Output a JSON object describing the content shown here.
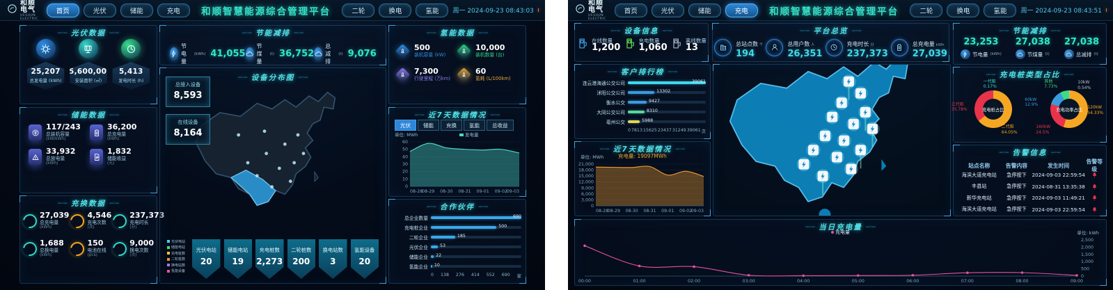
{
  "brand": {
    "logo": "和顺电气",
    "logo_sub": "HESHUN ELECTRIC"
  },
  "left": {
    "header": {
      "nav": [
        "首页",
        "光伏",
        "储能",
        "充电"
      ],
      "active": "首页",
      "title": "和顺智慧能源综合管理平台",
      "nav2": [
        "二轮",
        "换电",
        "氢能"
      ],
      "datetime": "周一 2024-09-23 08:43:03"
    },
    "pv": {
      "title": "光伏数据",
      "items": [
        {
          "value": "25,207",
          "label": "总发电量",
          "unit": "kWh",
          "icon": "sun-icon",
          "color": "#2f8fe8"
        },
        {
          "value": "5,600,000",
          "label": "安装面积",
          "unit": "㎡",
          "icon": "panel-icon",
          "color": "#35d8c8"
        },
        {
          "value": "5,413",
          "label": "发电时长",
          "unit": "h",
          "icon": "clock-icon",
          "color": "#35e089"
        }
      ]
    },
    "storage": {
      "title": "储能数据",
      "items": [
        {
          "value": "117/243",
          "label": "总装机容量",
          "unit": "kW/kWh",
          "icon": "coin-icon"
        },
        {
          "value": "36,200",
          "label": "总充电量",
          "unit": "kWh",
          "icon": "battery-icon"
        },
        {
          "value": "33,932",
          "label": "总放电量",
          "unit": "kWh",
          "icon": "triangle-icon"
        },
        {
          "value": "1,832",
          "label": "储能收益",
          "unit": "元",
          "icon": "doc-icon"
        }
      ]
    },
    "charge_swap": {
      "title": "充换数据",
      "items": [
        {
          "value": "27,039",
          "label": "总充电量",
          "unit": "kWh",
          "color": "#35d8c8"
        },
        {
          "value": "4,546",
          "label": "充电次数",
          "unit": "次",
          "color": "#f5a623"
        },
        {
          "value": "237,373",
          "label": "充电时长",
          "unit": "分",
          "color": "#35d8c8"
        },
        {
          "value": "1,688",
          "label": "总换电量",
          "unit": "kWh",
          "color": "#35d8c8"
        },
        {
          "value": "150",
          "label": "电池在线",
          "unit": "pcs",
          "color": "#f5a623"
        },
        {
          "value": "9,000",
          "label": "换电次数",
          "unit": "次",
          "color": "#35d8c8"
        }
      ]
    },
    "energy": {
      "title": "节能减排",
      "items": [
        {
          "label": "节电量",
          "unit": "kWh",
          "value": "41,055"
        },
        {
          "label": "节煤量",
          "unit": "t",
          "value": "36,752"
        },
        {
          "label": "总减排",
          "unit": "t",
          "value": "9,076"
        }
      ]
    },
    "map": {
      "title": "设备分布图",
      "access_label": "总接入设备",
      "access_value": "8,593",
      "online_label": "在线设备",
      "online_value": "8,164"
    },
    "badges": [
      {
        "label": "光伏电站",
        "value": "20",
        "color": "#3fd8ff"
      },
      {
        "label": "储能电站",
        "value": "19",
        "color": "#35e089"
      },
      {
        "label": "充电桩数",
        "value": "2,273",
        "color": "#f5c33a"
      },
      {
        "label": "二轮桩数",
        "value": "200",
        "color": "#e8962e"
      },
      {
        "label": "换电站数",
        "value": "3",
        "color": "#9b7df0"
      },
      {
        "label": "氢能设备",
        "value": "20",
        "color": "#e84fa0"
      }
    ],
    "hydrogen": {
      "title": "氢能数据",
      "items": [
        {
          "value": "500",
          "label": "装机容量",
          "unit": "kW",
          "color": "#2f8fe8"
        },
        {
          "value": "10,000",
          "label": "装机数量",
          "unit": "台",
          "color": "#2fd889"
        },
        {
          "value": "7,300",
          "label": "行驶里程",
          "unit": "万km",
          "color": "#8f7df0"
        },
        {
          "value": "60",
          "label": "氢耗",
          "unit": "L/100km",
          "color": "#e8a93a"
        }
      ]
    },
    "week_chart": {
      "type": "area",
      "title": "近7天数据情况",
      "tabs": [
        "光伏",
        "储能",
        "充换",
        "氢能",
        "总收益"
      ],
      "active_tab": "光伏",
      "unit": "单位: MWh",
      "legend": "发电量",
      "x": [
        "08-28",
        "08-29",
        "08-30",
        "08-31",
        "09-01",
        "09-02",
        "09-03"
      ],
      "values": [
        47,
        58,
        52,
        50,
        49,
        50,
        45
      ],
      "yticks": [
        0,
        10,
        20,
        30,
        40,
        50,
        60
      ],
      "ylabels": [
        "0",
        "10",
        "20",
        "30",
        "40",
        "50",
        "60"
      ],
      "color": "#49d8c8"
    },
    "partners": {
      "type": "hbar",
      "title": "合作伙伴",
      "categories": [
        "总企业数量",
        "充电桩企业",
        "二轮企业",
        "光伏企业",
        "储能企业",
        "氢能企业"
      ],
      "values": [
        690,
        500,
        185,
        53,
        22,
        10
      ],
      "value_labels": [
        "690",
        "500",
        "185",
        "53",
        "22",
        "10"
      ],
      "max": 690,
      "xticks": [
        "0",
        "138",
        "276",
        "414",
        "552",
        "690"
      ],
      "unit": "家",
      "color": "#3aa8e8"
    }
  },
  "right": {
    "header": {
      "nav": [
        "首页",
        "光伏",
        "储能",
        "充电"
      ],
      "active": "充电",
      "title": "和顺智慧能源综合管理平台",
      "nav2": [
        "二轮",
        "换电",
        "氢能"
      ],
      "datetime": "周一 2024-09-23 08:43:51"
    },
    "device": {
      "title": "设备信息",
      "items": [
        {
          "label": "在线数量",
          "value": "1,200",
          "color": "#3a9bdc"
        },
        {
          "label": "充电数量",
          "value": "1,060",
          "color": "#5ad84a"
        },
        {
          "label": "离线数量",
          "value": "13",
          "color": "#9aa8b5"
        }
      ]
    },
    "platform": {
      "title": "平台总览",
      "items": [
        {
          "label": "总站点数",
          "unit": "个",
          "value": "194",
          "icon": "station-icon"
        },
        {
          "label": "总用户数",
          "unit": "人",
          "value": "26,351",
          "icon": "users-icon"
        },
        {
          "label": "充电时长",
          "unit": "分",
          "value": "237,373",
          "icon": "clock-icon"
        },
        {
          "label": "总充电量",
          "unit": "kWh",
          "value": "27,039",
          "icon": "battery-icon"
        }
      ]
    },
    "energy": {
      "title": "节能减排",
      "items": [
        {
          "value": "23,253",
          "label": "节电量",
          "unit": "kWh"
        },
        {
          "value": "27,038",
          "label": "节煤量",
          "unit": "t"
        },
        {
          "value": "27,038",
          "label": "总减排",
          "unit": "t"
        }
      ]
    },
    "ranking": {
      "type": "hbar",
      "title": "客户排行榜",
      "categories": [
        "连云港海通公交公司",
        "沭阳公交公司",
        "衡水公交",
        "大同公交公司",
        "亳州公交"
      ],
      "values": [
        39061,
        13302,
        9427,
        8310,
        5988
      ],
      "value_labels": [
        "39061",
        "13302",
        "9427",
        "8310",
        "5988"
      ],
      "max": 39061,
      "xticks": [
        "0",
        "7813",
        "15625",
        "23437",
        "31249",
        "39061"
      ],
      "unit": "次",
      "colors": [
        "#3fd8e8",
        "#3a9bdc",
        "#3a9bdc",
        "#5ad88a",
        "#e8d44a"
      ]
    },
    "week_chart": {
      "type": "area",
      "title": "近7天数据情况",
      "unit": "单位: MWh",
      "top_label": "充电量: 19097MWh",
      "x": [
        "08-28",
        "08-29",
        "08-30",
        "08-31",
        "09-01",
        "09-02",
        "09-03"
      ],
      "values": [
        19500,
        19400,
        19300,
        19800,
        15500,
        17400,
        14800
      ],
      "yticks": [
        0,
        3000,
        6000,
        9000,
        12000,
        15000,
        18000,
        21000
      ],
      "ylabels": [
        "0",
        "3,000",
        "6,000",
        "9,000",
        "12,000",
        "15,000",
        "18,000",
        "21,000"
      ],
      "color": "#e8962e"
    },
    "pile_types": {
      "title": "充电桩类型占比",
      "donuts": [
        {
          "center": "充电桩占比",
          "slices": [
            {
              "name": "一代桩",
              "pct": "0.17%",
              "v": 0.17,
              "color": "#35e0d0"
            },
            {
              "name": "二代桩",
              "pct": "64.05%",
              "v": 64.05,
              "color": "#f5a623"
            },
            {
              "name": "三代桩",
              "pct": "35.78%",
              "v": 35.78,
              "color": "#e8334a"
            }
          ]
        },
        {
          "center": "充电功率占比",
          "slices": [
            {
              "name": "10kW",
              "pct": "0.54%",
              "v": 0.54,
              "color": "#b8c4d0"
            },
            {
              "name": "120kW",
              "pct": "54.33%",
              "v": 54.33,
              "color": "#f5a623"
            },
            {
              "name": "160kW",
              "pct": "24.5%",
              "v": 24.5,
              "color": "#e8334a"
            },
            {
              "name": "60kW",
              "pct": "12.9%",
              "v": 12.9,
              "color": "#3a9bdc"
            },
            {
              "name": "其他",
              "pct": "7.73%",
              "v": 7.73,
              "color": "#3ddc84"
            }
          ]
        }
      ]
    },
    "alarms": {
      "title": "告警信息",
      "headers": [
        "站点名称",
        "告警内容",
        "发生时间",
        "告警等级"
      ],
      "rows": [
        {
          "site": "海滨大道充电站",
          "content": "急停按下",
          "time": "2024-09-03 22:59:54"
        },
        {
          "site": "丰县站",
          "content": "急停按下",
          "time": "2024-08-31 13:35:38"
        },
        {
          "site": "新华充电站",
          "content": "急停按下",
          "time": "2024-09-03 11:49:21"
        },
        {
          "site": "海滨大道充电站",
          "content": "急停按下",
          "time": "2024-09-03 22:59:54"
        }
      ]
    },
    "daily_chart": {
      "type": "line",
      "title": "当日充电量",
      "legend": "充电量",
      "unit": "单位: kWh",
      "x": [
        "00:00",
        "01:00",
        "02:00",
        "03:00",
        "04:00",
        "05:00",
        "06:00",
        "07:00",
        "08:00",
        "09:00"
      ],
      "values": [
        2100,
        700,
        650,
        60,
        30,
        40,
        60,
        230,
        240,
        50
      ],
      "yticks": [
        0,
        500,
        1000,
        1500,
        2000,
        2500
      ],
      "ylabels": [
        "0",
        "500",
        "1,000",
        "1,500",
        "2,000",
        "2,500"
      ],
      "color": "#e84fa0"
    }
  }
}
